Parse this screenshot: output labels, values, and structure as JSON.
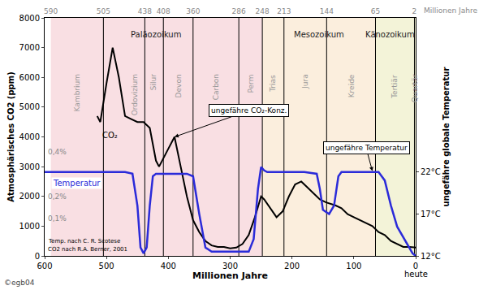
{
  "chart_data": {
    "type": "line",
    "x_title": "Millionen Jahre",
    "x_end_label": "heute",
    "x2_title": "Millionen Jahre",
    "y_title": "Atmosphärisches CO2 (ppm)",
    "y2_title": "ungefähre globale Temperatur",
    "xlim": [
      600,
      0
    ],
    "xticks": [
      600,
      500,
      400,
      300,
      200,
      100,
      0
    ],
    "x2ticks": [
      590,
      505,
      438,
      408,
      360,
      286,
      248,
      213,
      144,
      65,
      2
    ],
    "ylim": [
      0,
      8000
    ],
    "yticks": [
      0,
      1000,
      2000,
      3000,
      4000,
      5000,
      6000,
      7000,
      8000
    ],
    "y2lim": [
      12,
      40.4
    ],
    "y2ticks": [
      {
        "value": 12,
        "label": "12°C"
      },
      {
        "value": 17,
        "label": "17°C"
      },
      {
        "value": 22,
        "label": "22°C"
      }
    ],
    "grid": false,
    "series": [
      {
        "name": "CO₂",
        "color": "#000000",
        "label_position": [
          510,
          4050
        ],
        "x": [
          515,
          510,
          500,
          490,
          480,
          470,
          460,
          450,
          440,
          430,
          420,
          415,
          400,
          390,
          380,
          370,
          360,
          350,
          340,
          330,
          320,
          310,
          300,
          290,
          280,
          270,
          260,
          250,
          245,
          235,
          225,
          215,
          205,
          195,
          185,
          175,
          165,
          155,
          145,
          130,
          120,
          110,
          100,
          90,
          80,
          70,
          60,
          50,
          40,
          30,
          20,
          10,
          0
        ],
        "values": [
          4700,
          4500,
          5800,
          7000,
          6000,
          4700,
          4600,
          4500,
          4500,
          4300,
          3200,
          3000,
          3600,
          4000,
          3000,
          2000,
          1200,
          800,
          500,
          350,
          300,
          300,
          250,
          280,
          400,
          700,
          1300,
          2000,
          1900,
          1600,
          1300,
          1500,
          2000,
          2400,
          2500,
          2300,
          2100,
          1900,
          1800,
          1700,
          1600,
          1400,
          1300,
          1200,
          1100,
          1000,
          800,
          700,
          500,
          400,
          300,
          300,
          280
        ]
      },
      {
        "name": "Temperatur",
        "color": "#2b2bd9",
        "axis": "y2",
        "label_position": [
          590,
          20.7
        ],
        "x": [
          600,
          470,
          458,
          450,
          445,
          440,
          435,
          430,
          425,
          420,
          370,
          360,
          350,
          340,
          330,
          270,
          262,
          255,
          250,
          245,
          240,
          180,
          160,
          155,
          150,
          140,
          132,
          125,
          120,
          60,
          50,
          40,
          30,
          15,
          5,
          0
        ],
        "values": [
          22,
          22,
          21.8,
          18,
          13,
          12.3,
          13,
          18,
          21.5,
          21.8,
          21.8,
          21.5,
          17,
          13,
          12.5,
          12.5,
          14,
          20,
          22.6,
          22.2,
          22,
          22,
          21.8,
          20,
          17.5,
          17,
          18,
          21.5,
          22,
          22,
          21,
          18,
          15.5,
          13.5,
          12.3,
          12
        ]
      }
    ],
    "eras": [
      {
        "name": "Paläozoikum",
        "start": 590,
        "end": 248,
        "color": "#f9dfe3",
        "label_x": 420
      },
      {
        "name": "Mesozoikum",
        "start": 248,
        "end": 65,
        "color": "#fbeedd",
        "label_x": 156
      },
      {
        "name": "Känozoikum",
        "start": 65,
        "end": 0,
        "color": "#f3f3d8",
        "label_x": 42
      }
    ],
    "periods": [
      {
        "name": "Kambrium",
        "start": 590,
        "end": 505
      },
      {
        "name": "Ordovizium",
        "start": 505,
        "end": 438,
        "label_x": 455
      },
      {
        "name": "Silur",
        "start": 438,
        "end": 408
      },
      {
        "name": "Devon",
        "start": 408,
        "end": 360
      },
      {
        "name": "Carbon",
        "start": 360,
        "end": 286
      },
      {
        "name": "Perm",
        "start": 286,
        "end": 248
      },
      {
        "name": "Trias",
        "start": 248,
        "end": 213
      },
      {
        "name": "Jura",
        "start": 213,
        "end": 144
      },
      {
        "name": "Kreide",
        "start": 144,
        "end": 65
      },
      {
        "name": "Tertiär",
        "start": 65,
        "end": 2
      },
      {
        "name": "Quartär",
        "start": 2,
        "end": 0
      }
    ],
    "annotations": [
      {
        "text": "0,4%",
        "x": 597,
        "y": 3500,
        "color": "#888888"
      },
      {
        "text": "0,2%",
        "x": 597,
        "y": 2000,
        "color": "#888888"
      },
      {
        "text": "0,1%",
        "x": 597,
        "y": 1250,
        "color": "#888888"
      },
      {
        "text": "Temp. nach C. R. Scotese",
        "x": 597,
        "y": 480,
        "color": "#000000"
      },
      {
        "text": "CO2 nach R.A. Berner, 2001",
        "x": 597,
        "y": 210,
        "color": "#000000"
      },
      {
        "text": "ungefähre CO₂-Konz.",
        "x": 270,
        "y": 4880,
        "arrow_x": 390,
        "arrow_y": 4000,
        "color": "#000000"
      },
      {
        "text": "ungefähre Temperatur",
        "x": 80,
        "y": 3620,
        "arrow_x": 70,
        "arrow_y": 2850,
        "color": "#000000"
      }
    ],
    "credit": "©egb04"
  }
}
